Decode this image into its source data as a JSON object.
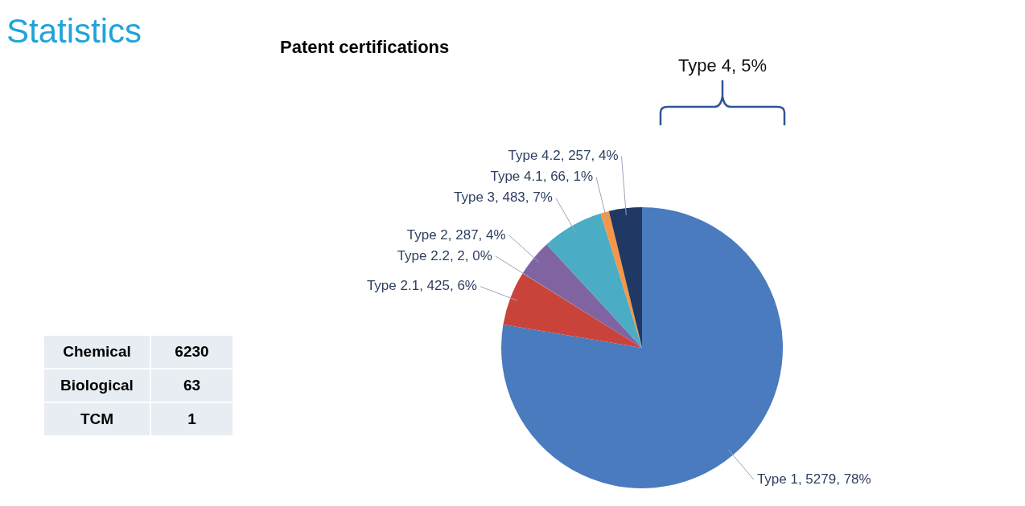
{
  "chart_data": [
    {
      "type": "other",
      "title": "Statistics",
      "categories": [
        "Chemical",
        "Biological",
        "TCM"
      ],
      "values": [
        6230,
        63,
        1
      ],
      "data_labels": true
    },
    {
      "type": "pie",
      "title": "Patent certifications",
      "categories": [
        "Type 1",
        "Type 2.1",
        "Type 2.2",
        "Type 2",
        "Type 3",
        "Type 4.1",
        "Type 4.2"
      ],
      "values": [
        5279,
        425,
        2,
        287,
        483,
        66,
        257
      ],
      "colors": [
        "#4a7bbf",
        "#c9433a",
        "#9bbb59",
        "#8064a2",
        "#4bacc6",
        "#f79646",
        "#1f3864"
      ],
      "value_labels": [
        "5279, 78%",
        "425, 6%",
        "2, 0%",
        "287, 4%",
        "483, 7%",
        "66, 1%",
        "257, 4%"
      ],
      "annotations": [
        "Type 4, 5%"
      ],
      "legend": false
    }
  ]
}
